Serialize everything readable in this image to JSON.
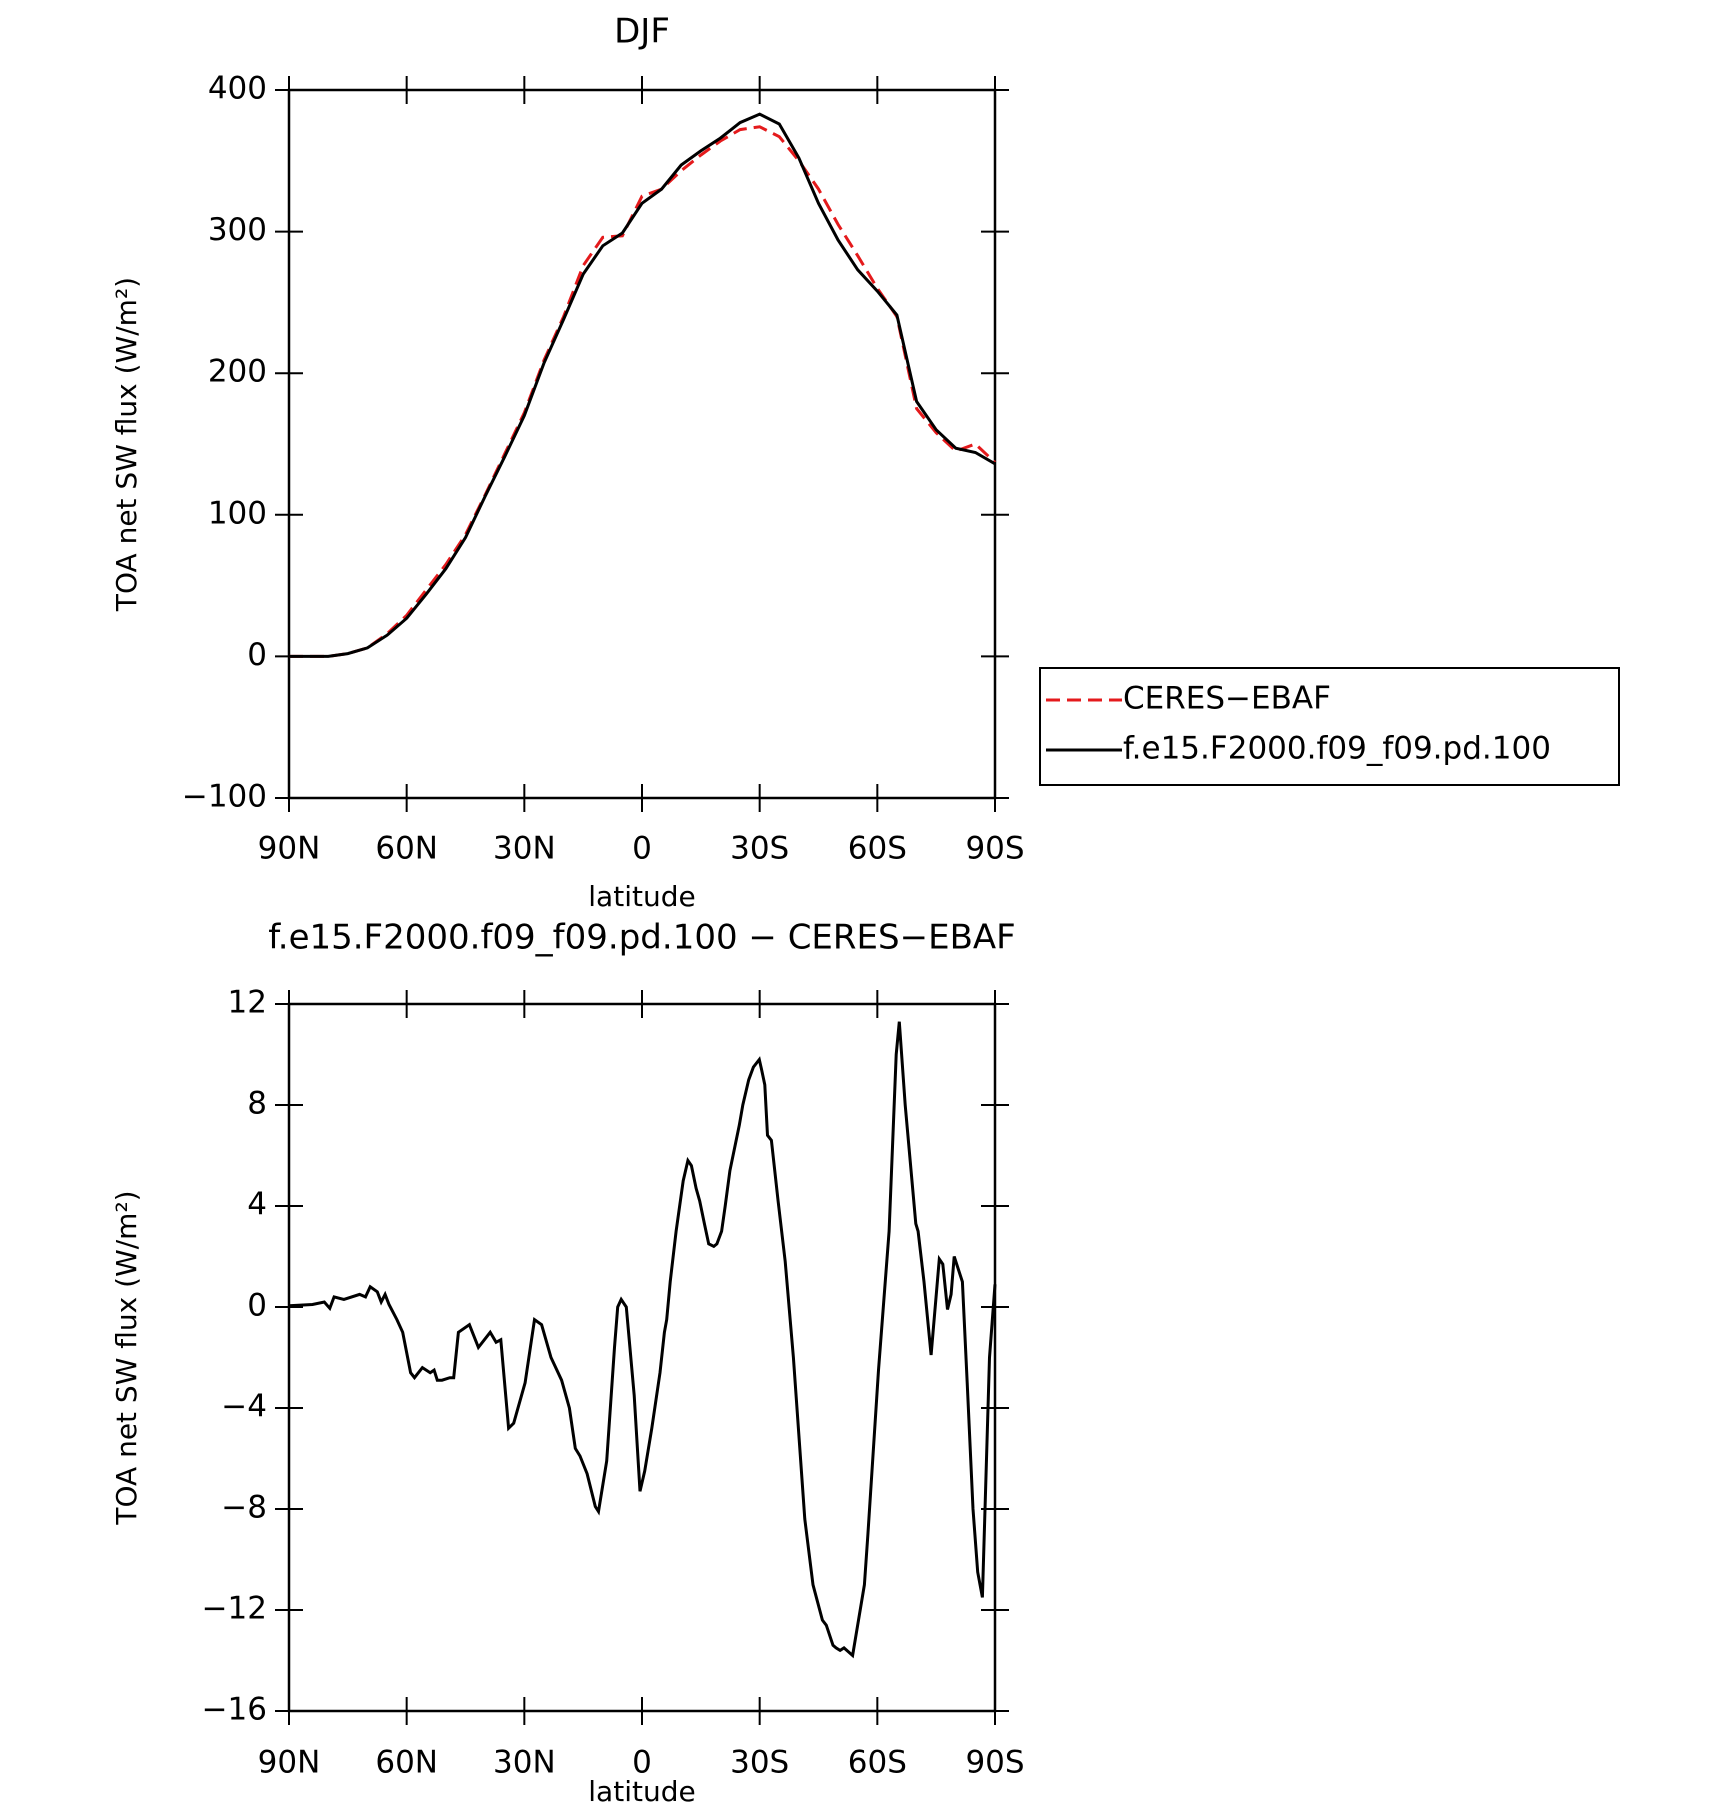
{
  "chart_data": [
    {
      "type": "line",
      "title": "DJF",
      "xlabel": "latitude",
      "ylabel": "TOA net SW flux (W/m²)",
      "xlim": [
        90,
        -90
      ],
      "xticks": [
        {
          "value": 90,
          "label": "90N"
        },
        {
          "value": 60,
          "label": "60N"
        },
        {
          "value": 30,
          "label": "30N"
        },
        0,
        {
          "value": -30,
          "label": "30S"
        },
        {
          "value": -60,
          "label": "60S"
        },
        {
          "value": -90,
          "label": "90S"
        }
      ],
      "ylim": [
        -100,
        400
      ],
      "yticks": [
        {
          "value": -100,
          "label": "−100"
        },
        0,
        100,
        200,
        300,
        400
      ],
      "legend": "outside right",
      "x": [
        90,
        85,
        80,
        75,
        70,
        65,
        60,
        55,
        50,
        45,
        40,
        35,
        30,
        25,
        20,
        15,
        10,
        5,
        0,
        -5,
        -10,
        -15,
        -20,
        -25,
        -30,
        -35,
        -40,
        -45,
        -50,
        -55,
        -60,
        -65,
        -70,
        -75,
        -80,
        -85,
        -90
      ],
      "series": [
        {
          "name": "CERES−EBAF",
          "color": "#e41a1c",
          "style": "dashed",
          "values": [
            0,
            0,
            0,
            2,
            6,
            16,
            29,
            47,
            65,
            86,
            114,
            143,
            172,
            209,
            240,
            276,
            296,
            297,
            325,
            330,
            343,
            354,
            364,
            372,
            374,
            367,
            350,
            330,
            305,
            283,
            260,
            240,
            175,
            158,
            145,
            150,
            137
          ]
        },
        {
          "name": "f.e15.F2000.f09_f09.pd.100",
          "color": "#000000",
          "style": "solid",
          "values": [
            0,
            0,
            0,
            2,
            6,
            15,
            27,
            44,
            62,
            84,
            113,
            141,
            170,
            207,
            238,
            270,
            290,
            299,
            320,
            330,
            347,
            357,
            366,
            377,
            383,
            376,
            352,
            320,
            294,
            273,
            258,
            241,
            180,
            160,
            147,
            144,
            136
          ]
        }
      ]
    },
    {
      "type": "line",
      "title": "f.e15.F2000.f09_f09.pd.100 − CERES−EBAF",
      "xlabel": "latitude",
      "ylabel": "TOA net SW flux (W/m²)",
      "xlim": [
        90,
        -90
      ],
      "xticks": [
        {
          "value": 90,
          "label": "90N"
        },
        {
          "value": 60,
          "label": "60N"
        },
        {
          "value": 30,
          "label": "30N"
        },
        0,
        {
          "value": -30,
          "label": "30S"
        },
        {
          "value": -60,
          "label": "60S"
        },
        {
          "value": -90,
          "label": "90S"
        }
      ],
      "ylim": [
        -16,
        12
      ],
      "yticks": [
        {
          "value": -16,
          "label": "−16"
        },
        {
          "value": -12,
          "label": "−12"
        },
        {
          "value": -8,
          "label": "−8"
        },
        {
          "value": -4,
          "label": "−4"
        },
        0,
        4,
        8,
        12
      ],
      "x": [
        90,
        84,
        81,
        79.6,
        78.5,
        76,
        72,
        70.5,
        69.3,
        67.5,
        66.5,
        65.5,
        64.5,
        62.5,
        61,
        59,
        58,
        56,
        54,
        53,
        52.2,
        51,
        49,
        48,
        46.8,
        44,
        41.7,
        38.7,
        37.2,
        36,
        34,
        32.7,
        29.8,
        27.4,
        25.6,
        23.2,
        20.5,
        18.5,
        17,
        15.8,
        14,
        11.9,
        11.1,
        9,
        7,
        6.2,
        5.3,
        4,
        2,
        0.5,
        -0.7,
        -2.5,
        -4.6,
        -5.7,
        -6.3,
        -7.2,
        -8.7,
        -10.5,
        -11.7,
        -12.6,
        -13.8,
        -14.7,
        -15.9,
        -17,
        -18.3,
        -19.1,
        -20.3,
        -21.2,
        -22.4,
        -24.8,
        -25.7,
        -27.2,
        -28.4,
        -29.9,
        -30.5,
        -31.3,
        -32,
        -33,
        -34.7,
        -36.5,
        -38.6,
        -41.5,
        -43.6,
        -46,
        -47,
        -48.7,
        -49.5,
        -50.5,
        -51.5,
        -53.7,
        -56.7,
        -57.6,
        -60.3,
        -63,
        -64.8,
        -65.6,
        -67.1,
        -69.8,
        -70.4,
        -71.9,
        -73.7,
        -75.8,
        -76.7,
        -77.9,
        -78.8,
        -79.6,
        -81.7,
        -82.9,
        -84.4,
        -85.6,
        -86.8,
        -88.6,
        -90
      ],
      "series": [
        {
          "color": "#000000",
          "style": "solid",
          "values": [
            0.05,
            0.1,
            0.2,
            -0.05,
            0.4,
            0.3,
            0.5,
            0.4,
            0.8,
            0.6,
            0.2,
            0.5,
            0.1,
            -0.5,
            -1,
            -2.6,
            -2.8,
            -2.4,
            -2.6,
            -2.5,
            -2.9,
            -2.9,
            -2.8,
            -2.8,
            -1,
            -0.7,
            -1.6,
            -1,
            -1.4,
            -1.3,
            -4.8,
            -4.6,
            -3,
            -0.5,
            -0.7,
            -2,
            -2.9,
            -4,
            -5.6,
            -5.9,
            -6.6,
            -7.9,
            -8.1,
            -6.1,
            -1.6,
            0,
            0.3,
            0,
            -3.5,
            -7.3,
            -6.5,
            -4.8,
            -2.6,
            -1,
            -0.5,
            1,
            3,
            5,
            5.8,
            5.6,
            4.7,
            4.2,
            3.3,
            2.5,
            2.4,
            2.5,
            3,
            4,
            5.4,
            7.2,
            8,
            9,
            9.5,
            9.8,
            9.4,
            8.8,
            6.8,
            6.6,
            4.2,
            1.8,
            -2,
            -8.4,
            -11,
            -12.4,
            -12.6,
            -13.4,
            -13.5,
            -13.6,
            -13.5,
            -13.8,
            -11,
            -9,
            -2.5,
            3,
            10,
            11.3,
            8,
            3.3,
            3,
            1,
            -1.9,
            1.9,
            1.7,
            -0.1,
            0.5,
            2,
            1,
            -3,
            -8,
            -10.5,
            -11.5,
            -2,
            0.9
          ]
        }
      ]
    }
  ]
}
